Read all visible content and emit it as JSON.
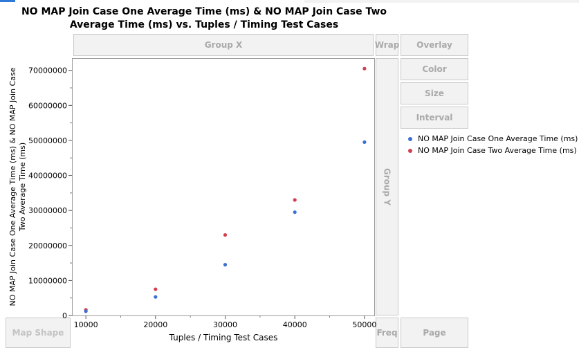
{
  "window": {
    "title": "NO MAP Join Case One Average Time (ms)  & NO MAP Join Case Two Average Time (ms) vs. Tuples / Timing Test Cases"
  },
  "zones": {
    "group_x": "Group X",
    "wrap": "Wrap",
    "overlay": "Overlay",
    "color": "Color",
    "size": "Size",
    "interval": "Interval",
    "group_y": "Group Y",
    "map_shape": "Map Shape",
    "freq": "Freq",
    "page": "Page"
  },
  "colors": {
    "series1": "#3d6fd4",
    "series2": "#d2404f"
  },
  "chart_data": {
    "type": "scatter",
    "title": "NO MAP Join Case One Average Time (ms)  & NO MAP Join Case Two Average Time (ms) vs. Tuples / Timing Test Cases",
    "xlabel": "Tuples / Timing Test Cases",
    "ylabel": "NO MAP Join Case One Average Time (ms) & NO MAP Join Case Two Average Time (ms)",
    "x": [
      10000,
      20000,
      30000,
      40000,
      50000
    ],
    "xlim": [
      8000,
      51500
    ],
    "ylim": [
      0,
      73500000
    ],
    "x_ticks": [
      10000,
      20000,
      30000,
      40000,
      50000
    ],
    "y_ticks": [
      0,
      10000000,
      20000000,
      30000000,
      40000000,
      50000000,
      60000000,
      70000000
    ],
    "grid": false,
    "legend_position": "right",
    "series": [
      {
        "name": "NO MAP Join Case One Average Time (ms)",
        "values": [
          1200000,
          5300000,
          14500000,
          29500000,
          49500000
        ]
      },
      {
        "name": "NO MAP Join Case Two Average Time (ms)",
        "values": [
          1600000,
          7500000,
          23000000,
          33000000,
          70500000
        ]
      }
    ]
  }
}
